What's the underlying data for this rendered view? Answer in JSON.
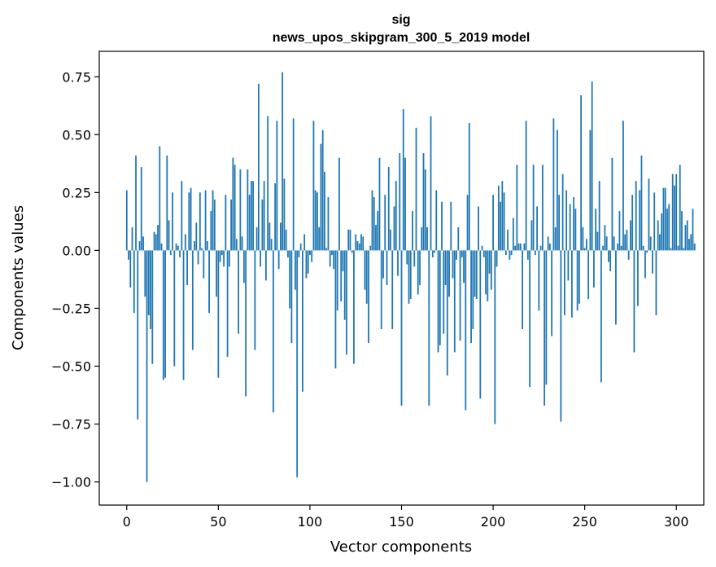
{
  "chart_data": {
    "type": "bar",
    "title": [
      "sig",
      "news_upos_skipgram_300_5_2019 model"
    ],
    "xlabel": "Vector components",
    "ylabel": "Components values",
    "xlim": [
      -15,
      315
    ],
    "ylim": [
      -1.1,
      0.86
    ],
    "xticks": [
      0,
      50,
      100,
      150,
      200,
      250,
      300
    ],
    "xtick_labels": [
      "0",
      "50",
      "100",
      "150",
      "200",
      "250",
      "300"
    ],
    "yticks": [
      -1.0,
      -0.75,
      -0.5,
      -0.25,
      0.0,
      0.25,
      0.5,
      0.75
    ],
    "ytick_labels": [
      "−1.00",
      "−0.75",
      "−0.50",
      "−0.25",
      "0.00",
      "0.25",
      "0.50",
      "0.75"
    ],
    "bar_color": "#1f77b4",
    "grid": false,
    "legend": "none",
    "values": [
      0.26,
      -0.04,
      -0.16,
      0.1,
      -0.27,
      0.41,
      -0.73,
      0.04,
      0.36,
      0.06,
      -0.2,
      -1.0,
      -0.28,
      -0.34,
      -0.49,
      0.08,
      0.07,
      0.11,
      0.45,
      0.03,
      -0.56,
      -0.55,
      0.41,
      0.13,
      -0.02,
      0.25,
      -0.5,
      0.03,
      0.02,
      -0.03,
      0.3,
      -0.56,
      0.07,
      -0.15,
      0.25,
      0.27,
      -0.43,
      0.04,
      0.12,
      -0.06,
      0.25,
      0.01,
      -0.12,
      0.26,
      0.04,
      -0.27,
      0.17,
      0.26,
      0.22,
      -0.2,
      -0.55,
      -0.05,
      -0.02,
      -0.07,
      0.24,
      -0.46,
      -0.07,
      0.22,
      0.4,
      0.37,
      0.05,
      -0.36,
      0.35,
      0.06,
      -0.14,
      -0.63,
      0.35,
      0.24,
      0.3,
      0.3,
      -0.43,
      0.1,
      0.72,
      -0.07,
      0.22,
      0.3,
      -0.13,
      0.58,
      0.12,
      0.05,
      -0.7,
      0.29,
      0.56,
      -0.08,
      0.12,
      0.77,
      0.31,
      0.09,
      -0.03,
      -0.25,
      -0.4,
      0.57,
      -0.17,
      -0.98,
      -0.03,
      0.03,
      -0.61,
      0.07,
      -0.12,
      -0.1,
      -0.02,
      -0.05,
      0.56,
      0.26,
      0.25,
      0.1,
      0.46,
      0.52,
      0.34,
      0.01,
      0.23,
      -0.07,
      -0.02,
      -0.08,
      -0.51,
      -0.26,
      0.4,
      -0.22,
      -0.09,
      -0.3,
      -0.45,
      0.09,
      0.09,
      -0.01,
      -0.49,
      0.07,
      0.04,
      0.03,
      0.07,
      0.06,
      -0.17,
      -0.23,
      -0.4,
      0.02,
      0.26,
      0.23,
      0.11,
      0.17,
      0.4,
      -0.34,
      -0.12,
      0.24,
      -0.15,
      0.36,
      0.09,
      -0.34,
      0.19,
      0.3,
      -0.11,
      0.42,
      -0.67,
      0.61,
      0.4,
      -0.06,
      -0.23,
      -0.21,
      0.17,
      -0.07,
      0.53,
      -0.19,
      -0.15,
      0.1,
      0.42,
      0.35,
      0.1,
      -0.67,
      0.58,
      -0.03,
      -0.01,
      0.26,
      -0.44,
      -0.41,
      0.21,
      -0.36,
      -0.15,
      -0.54,
      -0.2,
      0.21,
      -0.12,
      -0.44,
      -0.04,
      0.1,
      -0.39,
      -0.03,
      -0.14,
      -0.69,
      0.24,
      0.55,
      -0.4,
      -0.34,
      -0.2,
      -0.21,
      0.19,
      -0.64,
      0.02,
      -0.03,
      -0.19,
      -0.22,
      -0.1,
      -0.17,
      0.24,
      -0.75,
      -0.07,
      0.28,
      0.21,
      0.3,
      0.25,
      -0.02,
      0.09,
      -0.04,
      -0.02,
      0.14,
      0.02,
      0.37,
      0.03,
      0.03,
      -0.34,
      0.03,
      0.56,
      -0.04,
      -0.59,
      0.13,
      0.37,
      -0.02,
      0.19,
      -0.26,
      0.02,
      0.37,
      -0.67,
      -0.58,
      0.06,
      0.03,
      -0.37,
      0.57,
      0.1,
      0.52,
      0.24,
      -0.74,
      0.33,
      -0.28,
      0.26,
      -0.13,
      0.2,
      -0.29,
      0.23,
      0.18,
      -0.26,
      -0.23,
      0.67,
      0.1,
      0.01,
      0.05,
      -0.21,
      0.52,
      0.73,
      -0.16,
      0.18,
      0.08,
      0.3,
      -0.57,
      0.02,
      0.11,
      0.06,
      -0.05,
      -0.09,
      0.4,
      0.06,
      -0.32,
      0.03,
      0.17,
      0.02,
      0.56,
      0.07,
      0.09,
      -0.04,
      0.13,
      0.24,
      -0.44,
      0.3,
      -0.24,
      0.26,
      0.41,
      0.02,
      -0.12,
      -0.01,
      0.31,
      0.06,
      -0.1,
      0.25,
      -0.28,
      0.13,
      0.07,
      0.16,
      0.27,
      0.27,
      0.18,
      0.2,
      0.01,
      0.33,
      0.28,
      0.33,
      0.02,
      0.37,
      0.17,
      0.01,
      0.11,
      0.13,
      0.05,
      0.07,
      0.18,
      0.03
    ]
  }
}
